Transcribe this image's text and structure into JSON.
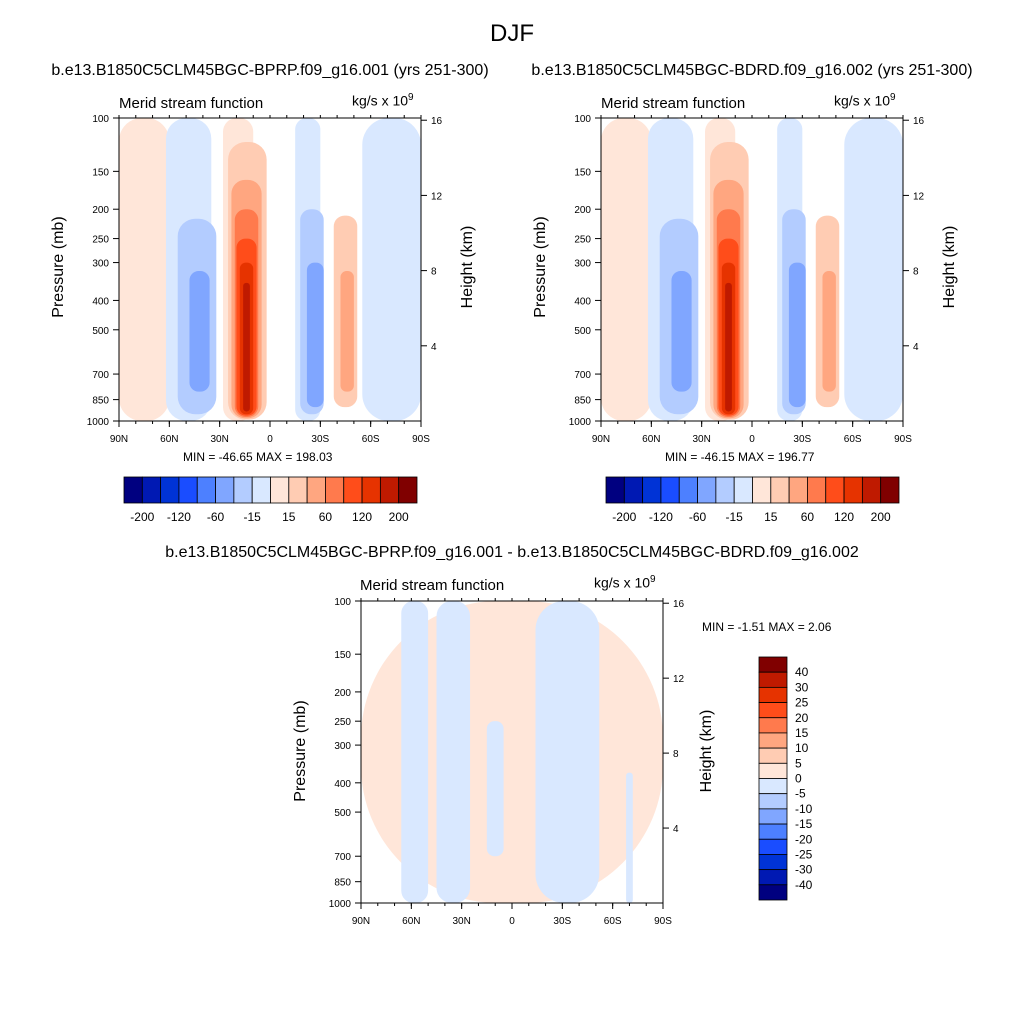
{
  "page": {
    "title": "DJF"
  },
  "colors": {
    "contour_palette": [
      "#000080",
      "#0019b3",
      "#0033d6",
      "#1a4dff",
      "#4d80ff",
      "#80a6ff",
      "#b3ccff",
      "#d9e8ff",
      "#ffe6d9",
      "#ffccb3",
      "#ffa680",
      "#ff7a4d",
      "#ff4d1a",
      "#e63300",
      "#bf1a00",
      "#800000"
    ]
  },
  "chart_data": [
    {
      "type": "heatmap",
      "run_title": "b.e13.B1850C5CLM45BGC-BPRP.f09_g16.001 (yrs 251-300)",
      "title": "Merid stream function",
      "units_base": "kg/s x 10",
      "units_exp": "9",
      "ylabel": "Pressure (mb)",
      "ylabel_right": "Height (km)",
      "x_ticks": [
        "90N",
        "60N",
        "30N",
        "0",
        "30S",
        "60S",
        "90S"
      ],
      "y_ticks": [
        "100",
        "150",
        "200",
        "250",
        "300",
        "400",
        "500",
        "700",
        "850",
        "1000"
      ],
      "y_ticks_right": [
        "16",
        "12",
        "8",
        "4"
      ],
      "stats": "MIN = -46.65  MAX = 198.03",
      "colorbar_labels": [
        "-200",
        "-120",
        "-60",
        "-15",
        "15",
        "60",
        "120",
        "200"
      ],
      "cells": [
        {
          "x": [
            -90,
            -60
          ],
          "p": [
            100,
            1000
          ],
          "level": 8
        },
        {
          "x": [
            -62,
            -35
          ],
          "p": [
            100,
            1000
          ],
          "level": 7
        },
        {
          "x": [
            -55,
            -32
          ],
          "p": [
            215,
            950
          ],
          "level": 6
        },
        {
          "x": [
            -48,
            -36
          ],
          "p": [
            320,
            800
          ],
          "level": 5
        },
        {
          "x": [
            -28,
            -10
          ],
          "p": [
            100,
            1000
          ],
          "level": 8
        },
        {
          "x": [
            -25,
            -2
          ],
          "p": [
            120,
            990
          ],
          "level": 9
        },
        {
          "x": [
            -23,
            -5
          ],
          "p": [
            160,
            980
          ],
          "level": 10
        },
        {
          "x": [
            -21,
            -7
          ],
          "p": [
            200,
            970
          ],
          "level": 11
        },
        {
          "x": [
            -20,
            -8
          ],
          "p": [
            250,
            960
          ],
          "level": 12
        },
        {
          "x": [
            -18,
            -10
          ],
          "p": [
            300,
            950
          ],
          "level": 13
        },
        {
          "x": [
            -16,
            -12
          ],
          "p": [
            350,
            930
          ],
          "level": 14
        },
        {
          "x": [
            15,
            30
          ],
          "p": [
            100,
            1000
          ],
          "level": 7
        },
        {
          "x": [
            18,
            32
          ],
          "p": [
            200,
            950
          ],
          "level": 6
        },
        {
          "x": [
            22,
            32
          ],
          "p": [
            300,
            900
          ],
          "level": 5
        },
        {
          "x": [
            38,
            52
          ],
          "p": [
            210,
            900
          ],
          "level": 9
        },
        {
          "x": [
            42,
            50
          ],
          "p": [
            320,
            800
          ],
          "level": 10
        },
        {
          "x": [
            55,
            90
          ],
          "p": [
            100,
            1000
          ],
          "level": 7
        }
      ]
    },
    {
      "type": "heatmap",
      "run_title": "b.e13.B1850C5CLM45BGC-BDRD.f09_g16.002 (yrs 251-300)",
      "title": "Merid stream function",
      "units_base": "kg/s x 10",
      "units_exp": "9",
      "ylabel": "Pressure (mb)",
      "ylabel_right": "Height (km)",
      "x_ticks": [
        "90N",
        "60N",
        "30N",
        "0",
        "30S",
        "60S",
        "90S"
      ],
      "y_ticks": [
        "100",
        "150",
        "200",
        "250",
        "300",
        "400",
        "500",
        "700",
        "850",
        "1000"
      ],
      "y_ticks_right": [
        "16",
        "12",
        "8",
        "4"
      ],
      "stats": "MIN = -46.15  MAX = 196.77",
      "colorbar_labels": [
        "-200",
        "-120",
        "-60",
        "-15",
        "15",
        "60",
        "120",
        "200"
      ],
      "cells": [
        {
          "x": [
            -90,
            -60
          ],
          "p": [
            100,
            1000
          ],
          "level": 8
        },
        {
          "x": [
            -62,
            -35
          ],
          "p": [
            100,
            1000
          ],
          "level": 7
        },
        {
          "x": [
            -55,
            -32
          ],
          "p": [
            215,
            950
          ],
          "level": 6
        },
        {
          "x": [
            -48,
            -36
          ],
          "p": [
            320,
            800
          ],
          "level": 5
        },
        {
          "x": [
            -28,
            -10
          ],
          "p": [
            100,
            1000
          ],
          "level": 8
        },
        {
          "x": [
            -25,
            -2
          ],
          "p": [
            120,
            990
          ],
          "level": 9
        },
        {
          "x": [
            -23,
            -5
          ],
          "p": [
            160,
            980
          ],
          "level": 10
        },
        {
          "x": [
            -21,
            -7
          ],
          "p": [
            200,
            970
          ],
          "level": 11
        },
        {
          "x": [
            -20,
            -8
          ],
          "p": [
            250,
            960
          ],
          "level": 12
        },
        {
          "x": [
            -18,
            -10
          ],
          "p": [
            300,
            950
          ],
          "level": 13
        },
        {
          "x": [
            -16,
            -12
          ],
          "p": [
            350,
            930
          ],
          "level": 14
        },
        {
          "x": [
            15,
            30
          ],
          "p": [
            100,
            1000
          ],
          "level": 7
        },
        {
          "x": [
            18,
            32
          ],
          "p": [
            200,
            950
          ],
          "level": 6
        },
        {
          "x": [
            22,
            32
          ],
          "p": [
            300,
            900
          ],
          "level": 5
        },
        {
          "x": [
            38,
            52
          ],
          "p": [
            210,
            900
          ],
          "level": 9
        },
        {
          "x": [
            42,
            50
          ],
          "p": [
            320,
            800
          ],
          "level": 10
        },
        {
          "x": [
            55,
            90
          ],
          "p": [
            100,
            1000
          ],
          "level": 7
        }
      ]
    },
    {
      "type": "heatmap",
      "run_title": "b.e13.B1850C5CLM45BGC-BPRP.f09_g16.001 - b.e13.B1850C5CLM45BGC-BDRD.f09_g16.002",
      "title": "Merid stream function",
      "units_base": "kg/s x 10",
      "units_exp": "9",
      "ylabel": "Pressure (mb)",
      "ylabel_right": "Height (km)",
      "x_ticks": [
        "90N",
        "60N",
        "30N",
        "0",
        "30S",
        "60S",
        "90S"
      ],
      "y_ticks": [
        "100",
        "150",
        "200",
        "250",
        "300",
        "400",
        "500",
        "700",
        "850",
        "1000"
      ],
      "y_ticks_right": [
        "16",
        "12",
        "8",
        "4"
      ],
      "stats": "MIN = -1.51  MAX =  2.06",
      "colorbar_labels": [
        "40",
        "30",
        "25",
        "20",
        "15",
        "10",
        "5",
        "0",
        "-5",
        "-10",
        "-15",
        "-20",
        "-25",
        "-30",
        "-40"
      ],
      "cells": [
        {
          "x": [
            -90,
            90
          ],
          "p": [
            100,
            1000
          ],
          "level": 8
        },
        {
          "x": [
            -66,
            -50
          ],
          "p": [
            100,
            1000
          ],
          "level": 7
        },
        {
          "x": [
            -45,
            -25
          ],
          "p": [
            100,
            1000
          ],
          "level": 7
        },
        {
          "x": [
            -15,
            -5
          ],
          "p": [
            250,
            700
          ],
          "level": 7
        },
        {
          "x": [
            14,
            52
          ],
          "p": [
            100,
            1000
          ],
          "level": 7
        },
        {
          "x": [
            68,
            72
          ],
          "p": [
            370,
            1000
          ],
          "level": 7
        }
      ]
    }
  ]
}
